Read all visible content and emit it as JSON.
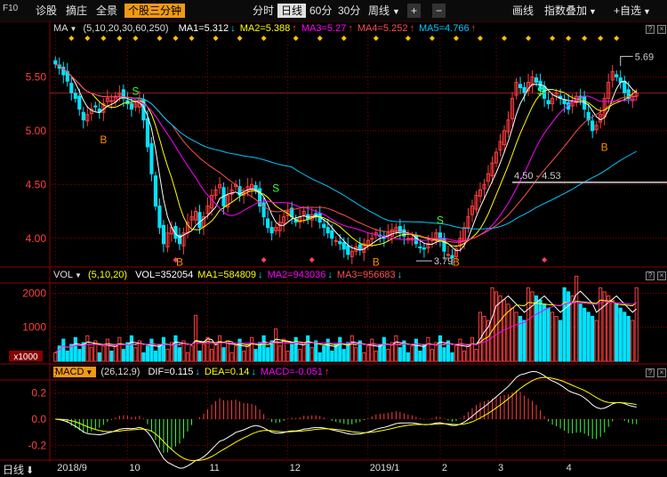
{
  "toolbar": {
    "code": "F10",
    "left_items": [
      "诊股",
      "摘庄",
      "全景"
    ],
    "active_tab": "个股三分钟",
    "period_items": [
      "分时",
      "日线",
      "60分",
      "30分"
    ],
    "period_selected": "日线",
    "period_more": "周线",
    "right_items": [
      "画线",
      "指数叠加",
      "自选"
    ],
    "plus": "+",
    "minus": "−"
  },
  "price_panel": {
    "indicator": "MA",
    "params": "(5,10,20,30,60,250)",
    "ma1": "MA1=5.312",
    "ma2": "MA2=5.388",
    "ma3": "MA3=5.27",
    "ma4": "MA4=5.252",
    "ma5": "MA5=4.766",
    "high_label": "5.69",
    "low_label": "3.79",
    "range_label": "4.50 - 4.53",
    "buy_label": "B",
    "sell_label": "S"
  },
  "volume_panel": {
    "indicator": "VOL",
    "params": "(5,10,20)",
    "vol": "VOL=352054",
    "ma1": "MA1=584809",
    "ma2": "MA2=943036",
    "ma3": "MA3=956683",
    "unit": "x1000"
  },
  "macd_panel": {
    "indicator": "MACD",
    "params": "(26,12,9)",
    "dif": "DIF=0.115",
    "dea": "DEA=0.14",
    "macd": "MACD=-0.051"
  },
  "bottom_bar": {
    "period": "日线"
  },
  "colors": {
    "up": "#ff3c3c",
    "down": "#00e4ff",
    "ma1": "#ffffff",
    "ma2": "#ffff00",
    "ma3": "#ff00ff",
    "ma4": "#ff5050",
    "ma5": "#00c8ff",
    "grid": "#8b0000"
  },
  "chart_data": [
    {
      "type": "candlestick",
      "name": "price",
      "x_ticks": [
        "2018/9",
        "10",
        "11",
        "12",
        "2019/1",
        "2",
        "3",
        "4"
      ],
      "yticks": [
        4.0,
        4.5,
        5.0,
        5.5
      ],
      "ylim": [
        3.75,
        5.9
      ],
      "closes": [
        5.62,
        5.58,
        5.52,
        5.46,
        5.35,
        5.3,
        5.2,
        5.1,
        5.15,
        5.2,
        5.22,
        5.17,
        5.25,
        5.3,
        5.28,
        5.32,
        5.35,
        5.3,
        5.25,
        5.2,
        5.25,
        5.3,
        5.1,
        4.85,
        4.6,
        4.3,
        4.1,
        3.95,
        4.05,
        4.1,
        4.0,
        3.95,
        4.05,
        4.15,
        4.2,
        4.25,
        4.1,
        4.2,
        4.3,
        4.4,
        4.45,
        4.5,
        4.3,
        4.4,
        4.45,
        4.5,
        4.4,
        4.42,
        4.48,
        4.5,
        4.45,
        4.3,
        4.2,
        4.1,
        4.05,
        4.1,
        4.15,
        4.2,
        4.25,
        4.2,
        4.15,
        4.2,
        4.25,
        4.18,
        4.22,
        4.2,
        4.15,
        4.1,
        4.05,
        4.0,
        3.98,
        3.95,
        3.9,
        3.85,
        3.88,
        3.92,
        3.9,
        3.95,
        3.98,
        4.0,
        4.05,
        4.02,
        4.0,
        4.05,
        4.08,
        4.1,
        4.05,
        4.02,
        4.0,
        4.0,
        3.95,
        3.92,
        3.9,
        3.95,
        4.0,
        4.05,
        3.98,
        3.88,
        3.85,
        3.82,
        3.9,
        4.0,
        4.1,
        4.2,
        4.3,
        4.4,
        4.45,
        4.5,
        4.6,
        4.7,
        4.8,
        4.9,
        5.0,
        5.1,
        5.3,
        5.45,
        5.4,
        5.35,
        5.45,
        5.5,
        5.45,
        5.38,
        5.3,
        5.25,
        5.3,
        5.35,
        5.3,
        5.25,
        5.2,
        5.28,
        5.32,
        5.3,
        5.2,
        5.1,
        5.0,
        5.05,
        5.15,
        5.3,
        5.45,
        5.55,
        5.5,
        5.45,
        5.35,
        5.3,
        5.32,
        5.35
      ],
      "ma_series": [
        {
          "name": "MA1",
          "last": 5.312
        },
        {
          "name": "MA2",
          "last": 5.388
        },
        {
          "name": "MA3",
          "last": 5.27
        },
        {
          "name": "MA4",
          "last": 5.252
        },
        {
          "name": "MA5",
          "last": 4.766
        }
      ],
      "annotations": [
        {
          "text": "5.69",
          "value": 5.69
        },
        {
          "text": "3.79",
          "value": 3.79
        },
        {
          "text": "4.50 - 4.53",
          "value": 4.52
        }
      ]
    },
    {
      "type": "bar",
      "name": "volume",
      "yticks": [
        1000,
        2000
      ],
      "unit": "x1000",
      "last": 352054,
      "ma": [
        584809,
        943036,
        956683
      ]
    },
    {
      "type": "bar",
      "name": "macd",
      "yticks": [
        0.2,
        0.0,
        -0.2
      ],
      "ylim": [
        -0.3,
        0.3
      ],
      "dif_last": 0.115,
      "dea_last": 0.14,
      "macd_last": -0.051
    }
  ]
}
